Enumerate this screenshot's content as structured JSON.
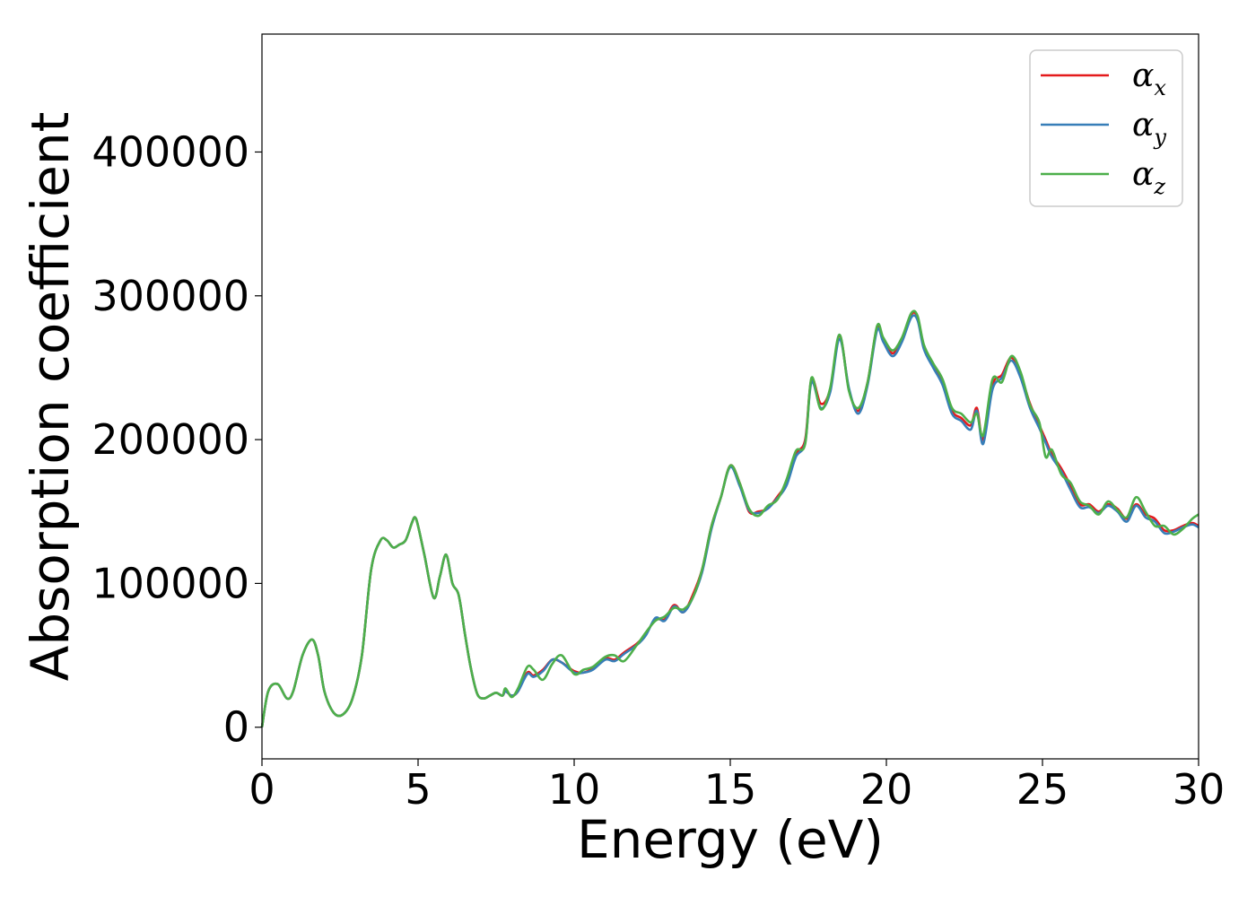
{
  "chart_data": {
    "type": "line",
    "title": "",
    "xlabel": "Energy (eV)",
    "ylabel": "Absorption coefficient",
    "xlim": [
      0,
      30
    ],
    "ylim": [
      -22000,
      482000
    ],
    "xticks": [
      0,
      5,
      10,
      15,
      20,
      25,
      30
    ],
    "yticks": [
      0,
      100000,
      200000,
      300000,
      400000
    ],
    "grid": false,
    "legend_position": "top-right",
    "series": [
      {
        "name": "α",
        "subscript": "x",
        "color": "#e41a1c",
        "x": [
          0,
          0.2,
          0.5,
          0.8,
          1.0,
          1.3,
          1.6,
          1.8,
          2.0,
          2.3,
          2.6,
          2.9,
          3.2,
          3.5,
          3.8,
          4.0,
          4.2,
          4.4,
          4.6,
          4.8,
          4.9,
          5.0,
          5.2,
          5.5,
          5.7,
          5.9,
          6.1,
          6.3,
          6.5,
          6.7,
          6.9,
          7.1,
          7.3,
          7.5,
          7.7,
          7.8,
          8.0,
          8.2,
          8.5,
          8.7,
          9.0,
          9.3,
          9.6,
          10.0,
          10.3,
          10.6,
          11.0,
          11.3,
          11.6,
          12.0,
          12.3,
          12.6,
          12.9,
          13.2,
          13.5,
          13.8,
          14.1,
          14.4,
          14.7,
          15.0,
          15.3,
          15.6,
          15.9,
          16.2,
          16.5,
          16.8,
          17.1,
          17.4,
          17.6,
          17.9,
          18.2,
          18.5,
          18.8,
          19.1,
          19.4,
          19.7,
          19.9,
          20.2,
          20.5,
          20.8,
          21.0,
          21.2,
          21.5,
          21.8,
          22.1,
          22.4,
          22.7,
          22.9,
          23.1,
          23.4,
          23.7,
          24.0,
          24.3,
          24.6,
          24.9,
          25.1,
          25.3,
          25.6,
          25.9,
          26.2,
          26.5,
          26.8,
          27.1,
          27.4,
          27.7,
          28.0,
          28.3,
          28.6,
          28.9,
          29.2,
          29.5,
          29.8,
          30.0
        ],
        "values": [
          0,
          25000,
          30000,
          20000,
          25000,
          50000,
          61000,
          50000,
          25000,
          10000,
          9000,
          20000,
          50000,
          110000,
          130000,
          130000,
          125000,
          127000,
          130000,
          142000,
          146000,
          140000,
          120000,
          90000,
          105000,
          120000,
          100000,
          92000,
          65000,
          40000,
          23000,
          20000,
          22000,
          24000,
          22000,
          25000,
          22000,
          25000,
          38000,
          36000,
          40000,
          47000,
          45000,
          39000,
          38000,
          41000,
          48000,
          47000,
          52000,
          58000,
          65000,
          75000,
          75000,
          85000,
          80000,
          92000,
          110000,
          140000,
          160000,
          182000,
          170000,
          150000,
          150000,
          152000,
          160000,
          170000,
          190000,
          200000,
          242000,
          225000,
          235000,
          272000,
          235000,
          220000,
          240000,
          278000,
          270000,
          260000,
          270000,
          287000,
          285000,
          265000,
          252000,
          240000,
          220000,
          215000,
          210000,
          222000,
          200000,
          238000,
          245000,
          257000,
          245000,
          225000,
          210000,
          200000,
          190000,
          180000,
          168000,
          155000,
          155000,
          150000,
          155000,
          152000,
          145000,
          155000,
          148000,
          145000,
          137000,
          137000,
          140000,
          142000,
          140000
        ]
      },
      {
        "name": "α",
        "subscript": "y",
        "color": "#377eb8",
        "x": [
          0,
          0.2,
          0.5,
          0.8,
          1.0,
          1.3,
          1.6,
          1.8,
          2.0,
          2.3,
          2.6,
          2.9,
          3.2,
          3.5,
          3.8,
          4.0,
          4.2,
          4.4,
          4.6,
          4.8,
          4.9,
          5.0,
          5.2,
          5.5,
          5.7,
          5.9,
          6.1,
          6.3,
          6.5,
          6.7,
          6.9,
          7.1,
          7.3,
          7.5,
          7.7,
          7.8,
          8.0,
          8.2,
          8.5,
          8.7,
          9.0,
          9.3,
          9.6,
          10.0,
          10.3,
          10.6,
          11.0,
          11.3,
          11.6,
          12.0,
          12.3,
          12.6,
          12.9,
          13.2,
          13.5,
          13.8,
          14.1,
          14.4,
          14.7,
          15.0,
          15.3,
          15.6,
          15.9,
          16.2,
          16.5,
          16.8,
          17.1,
          17.4,
          17.6,
          17.9,
          18.2,
          18.5,
          18.8,
          19.1,
          19.4,
          19.7,
          19.9,
          20.2,
          20.5,
          20.8,
          21.0,
          21.2,
          21.5,
          21.8,
          22.1,
          22.4,
          22.7,
          22.9,
          23.1,
          23.4,
          23.7,
          24.0,
          24.3,
          24.6,
          24.9,
          25.1,
          25.3,
          25.6,
          25.9,
          26.2,
          26.5,
          26.8,
          27.1,
          27.4,
          27.7,
          28.0,
          28.3,
          28.6,
          28.9,
          29.2,
          29.5,
          29.8,
          30.0
        ],
        "values": [
          0,
          25000,
          30000,
          20000,
          25000,
          50000,
          61000,
          50000,
          25000,
          10000,
          9000,
          20000,
          50000,
          110000,
          130000,
          130000,
          125000,
          127000,
          130000,
          142000,
          146000,
          140000,
          120000,
          90000,
          105000,
          120000,
          100000,
          92000,
          65000,
          40000,
          23000,
          20000,
          22000,
          24000,
          22000,
          25000,
          22000,
          25000,
          37000,
          35000,
          39000,
          47000,
          45000,
          38000,
          38000,
          40000,
          47000,
          46000,
          51000,
          57000,
          64000,
          76000,
          74000,
          84000,
          80000,
          90000,
          108000,
          138000,
          160000,
          181000,
          168000,
          151000,
          149000,
          152000,
          159000,
          168000,
          188000,
          198000,
          240000,
          222000,
          233000,
          270000,
          236000,
          218000,
          238000,
          276000,
          268000,
          258000,
          268000,
          285000,
          283000,
          263000,
          250000,
          238000,
          218000,
          213000,
          207000,
          220000,
          197000,
          235000,
          243000,
          255000,
          243000,
          222000,
          208000,
          198000,
          188000,
          178000,
          165000,
          153000,
          153000,
          149000,
          154000,
          150000,
          143000,
          154000,
          146000,
          143000,
          135000,
          136000,
          139000,
          141000,
          139000
        ]
      },
      {
        "name": "α",
        "subscript": "z",
        "color": "#4daf4a",
        "x": [
          0,
          0.2,
          0.5,
          0.8,
          1.0,
          1.3,
          1.6,
          1.8,
          2.0,
          2.3,
          2.6,
          2.9,
          3.2,
          3.5,
          3.8,
          4.0,
          4.2,
          4.4,
          4.6,
          4.8,
          4.9,
          5.0,
          5.2,
          5.5,
          5.7,
          5.9,
          6.1,
          6.3,
          6.5,
          6.7,
          6.9,
          7.1,
          7.3,
          7.5,
          7.7,
          7.8,
          8.0,
          8.2,
          8.5,
          8.7,
          9.0,
          9.3,
          9.6,
          10.0,
          10.3,
          10.6,
          11.0,
          11.3,
          11.6,
          12.0,
          12.3,
          12.6,
          12.9,
          13.2,
          13.5,
          13.8,
          14.1,
          14.4,
          14.7,
          15.0,
          15.3,
          15.6,
          15.9,
          16.2,
          16.5,
          16.8,
          17.1,
          17.4,
          17.6,
          17.9,
          18.2,
          18.5,
          18.8,
          19.1,
          19.4,
          19.7,
          19.9,
          20.2,
          20.5,
          20.8,
          21.0,
          21.2,
          21.5,
          21.8,
          22.1,
          22.4,
          22.7,
          22.9,
          23.1,
          23.4,
          23.7,
          24.0,
          24.3,
          24.6,
          24.9,
          25.1,
          25.3,
          25.6,
          25.9,
          26.2,
          26.5,
          26.8,
          27.1,
          27.4,
          27.7,
          28.0,
          28.3,
          28.6,
          28.9,
          29.2,
          29.5,
          29.8,
          30.0
        ],
        "values": [
          0,
          25000,
          30000,
          20000,
          25000,
          50000,
          61000,
          50000,
          25000,
          10000,
          9000,
          20000,
          50000,
          110000,
          130000,
          130000,
          125000,
          127000,
          130000,
          142000,
          146000,
          140000,
          120000,
          90000,
          105000,
          120000,
          100000,
          92000,
          65000,
          40000,
          23000,
          20000,
          22000,
          24000,
          22000,
          27000,
          21000,
          27000,
          42000,
          40000,
          33000,
          44000,
          50000,
          37000,
          40000,
          42000,
          49000,
          50000,
          46000,
          57000,
          66000,
          74000,
          77000,
          83000,
          82000,
          90000,
          110000,
          140000,
          160000,
          182000,
          170000,
          152000,
          147000,
          154000,
          158000,
          172000,
          192000,
          197000,
          243000,
          221000,
          236000,
          273000,
          234000,
          222000,
          240000,
          279000,
          271000,
          262000,
          271000,
          288000,
          286000,
          266000,
          253000,
          242000,
          222000,
          218000,
          212000,
          218000,
          203000,
          242000,
          240000,
          258000,
          247000,
          224000,
          212000,
          188000,
          193000,
          176000,
          170000,
          157000,
          154000,
          148000,
          157000,
          151000,
          146000,
          160000,
          150000,
          140000,
          140000,
          134000,
          138000,
          145000,
          148000
        ]
      }
    ]
  }
}
